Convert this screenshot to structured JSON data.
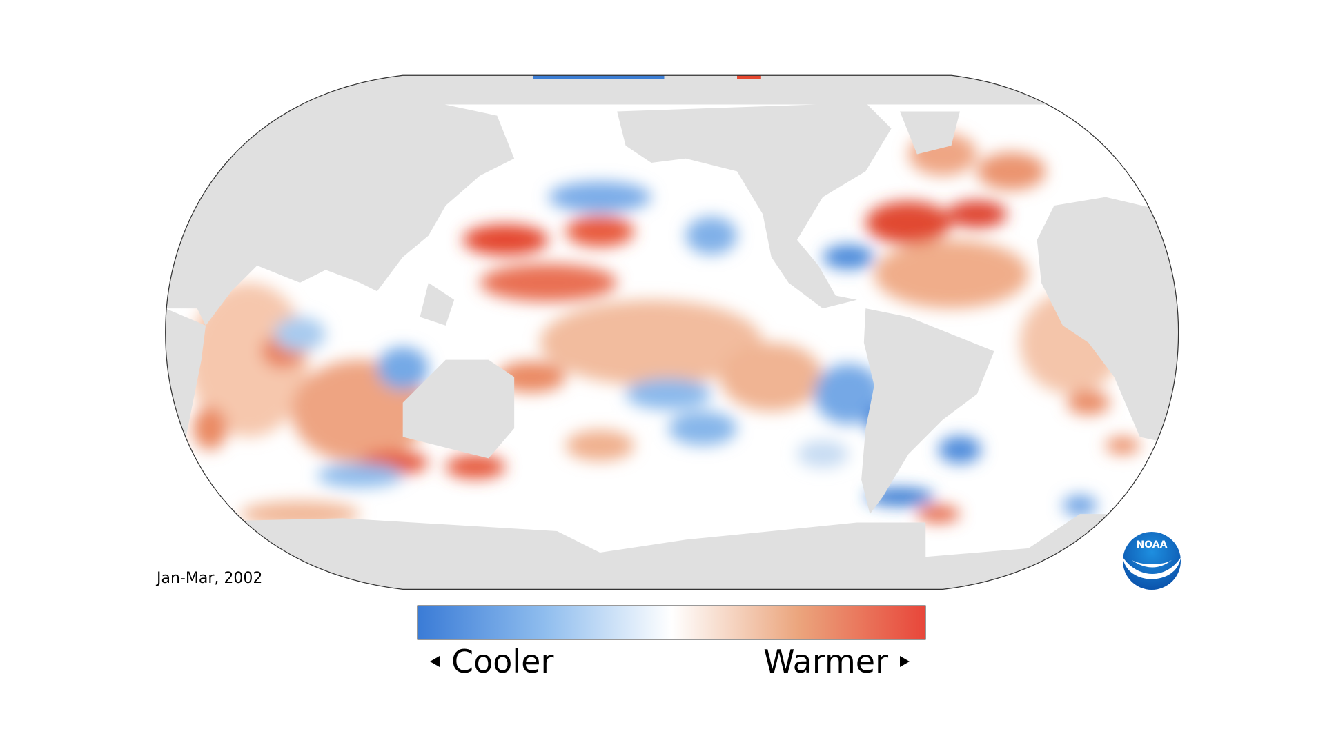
{
  "map": {
    "date_label": "Jan-Mar, 2002",
    "legend": {
      "low_label": "Cooler",
      "high_label": "Warmer"
    },
    "logo_text": "NOAA"
  }
}
